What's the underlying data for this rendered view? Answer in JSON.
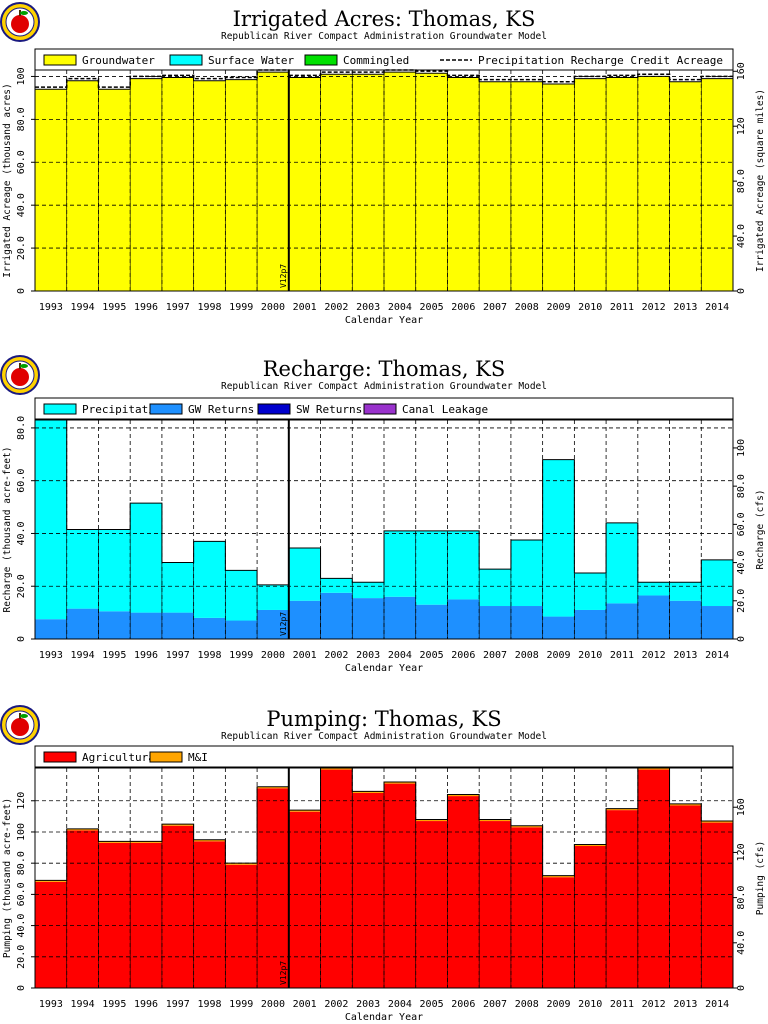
{
  "logo": {
    "icon": "apple-seal-icon"
  },
  "chart_data": [
    {
      "type": "bar",
      "title": "Irrigated Acres: Thomas, KS",
      "subtitle": "Republican River Compact Administration Groundwater Model",
      "xlabel": "Calendar Year",
      "ylabel": "Irrigated Acreage (thousand acres)",
      "ylabel_right": "Irrigated Acreage (square miles)",
      "categories": [
        "1993",
        "1994",
        "1995",
        "1996",
        "1997",
        "1998",
        "1999",
        "2000",
        "2001",
        "2002",
        "2003",
        "2004",
        "2005",
        "2006",
        "2007",
        "2008",
        "2009",
        "2010",
        "2011",
        "2012",
        "2013",
        "2014"
      ],
      "ylim": [
        0,
        103
      ],
      "yticks": [
        0,
        20,
        40,
        60,
        80,
        100
      ],
      "ytick_labels": [
        "0",
        "20.0",
        "40.0",
        "60.0",
        "80.0",
        "100"
      ],
      "yticks_right": [
        0,
        40,
        80,
        120,
        160
      ],
      "ytick_labels_right": [
        "0",
        "40.0",
        "80.0",
        "120",
        "160"
      ],
      "right_scale": 1.5625,
      "grid": true,
      "legend_position": "top",
      "marker": {
        "label": "V12p7",
        "between": [
          "2000",
          "2001"
        ]
      },
      "series": [
        {
          "name": "Groundwater",
          "color": "#ffff00",
          "values": [
            94,
            98,
            94,
            99,
            99.5,
            98,
            98.5,
            102,
            99.5,
            101,
            101,
            102,
            101.5,
            99.5,
            97.5,
            97.5,
            96.5,
            99,
            99.5,
            100,
            97.5,
            99
          ]
        },
        {
          "name": "Surface Water",
          "color": "#00ffff",
          "values": [
            0,
            0,
            0,
            0,
            0,
            0,
            0,
            0,
            0,
            0,
            0,
            0,
            0,
            0,
            0,
            0,
            0,
            0,
            0,
            0,
            0,
            0
          ]
        },
        {
          "name": "Commingled",
          "color": "#00e000",
          "values": [
            0,
            0,
            0,
            0,
            0,
            0,
            0,
            0,
            0,
            0,
            0,
            0,
            0,
            0,
            0,
            0,
            0,
            0,
            0,
            0,
            0,
            0
          ]
        }
      ],
      "line_series": {
        "name": "Precipitation Recharge Credit Acreage",
        "style": "dashed",
        "values": [
          95,
          99,
          95,
          100,
          100.5,
          99,
          99.5,
          103,
          100.5,
          102,
          102,
          103,
          102.5,
          100.5,
          98.5,
          98.5,
          97.5,
          100,
          100.5,
          101,
          98.5,
          100
        ]
      }
    },
    {
      "type": "bar",
      "title": "Recharge: Thomas, KS",
      "subtitle": "Republican River Compact Administration Groundwater Model",
      "xlabel": "Calendar Year",
      "ylabel": "Recharge (thousand acre-feet)",
      "ylabel_right": "Recharge (cfs)",
      "categories": [
        "1993",
        "1994",
        "1995",
        "1996",
        "1997",
        "1998",
        "1999",
        "2000",
        "2001",
        "2002",
        "2003",
        "2004",
        "2005",
        "2006",
        "2007",
        "2008",
        "2009",
        "2010",
        "2011",
        "2012",
        "2013",
        "2014"
      ],
      "ylim": [
        0,
        83
      ],
      "yticks": [
        0,
        20,
        40,
        60,
        80
      ],
      "ytick_labels": [
        "0",
        "20.0",
        "40.0",
        "60.0",
        "80.0"
      ],
      "yticks_right": [
        0,
        20,
        40,
        60,
        80,
        100
      ],
      "ytick_labels_right": [
        "0",
        "20.0",
        "40.0",
        "60.0",
        "80.0",
        "100"
      ],
      "right_scale": 1.381,
      "grid": true,
      "legend_position": "top",
      "marker": {
        "label": "V12p7",
        "between": [
          "2000",
          "2001"
        ]
      },
      "series": [
        {
          "name": "GW Returns",
          "color": "#1e90ff",
          "values": [
            7.5,
            11.5,
            10.5,
            10,
            10,
            8,
            7,
            11,
            14.5,
            17.5,
            15.5,
            16,
            13,
            15,
            12.5,
            12.5,
            8.5,
            11,
            13.5,
            16.5,
            14.5,
            12.5
          ]
        },
        {
          "name": "Precipitation",
          "color": "#00ffff",
          "values": [
            75.5,
            30,
            31,
            41.5,
            19,
            29,
            19,
            9.5,
            20,
            5.5,
            6,
            25,
            28,
            26,
            14,
            25,
            59.5,
            14,
            30.5,
            5,
            7,
            17.5
          ]
        },
        {
          "name": "SW Returns",
          "color": "#0000cd",
          "values": [
            0,
            0,
            0,
            0,
            0,
            0,
            0,
            0,
            0,
            0,
            0,
            0,
            0,
            0,
            0,
            0,
            0,
            0,
            0,
            0,
            0,
            0
          ]
        },
        {
          "name": "Canal Leakage",
          "color": "#9932cc",
          "values": [
            0,
            0,
            0,
            0,
            0,
            0,
            0,
            0,
            0,
            0,
            0,
            0,
            0,
            0,
            0,
            0,
            0,
            0,
            0,
            0,
            0,
            0
          ]
        }
      ]
    },
    {
      "type": "bar",
      "title": "Pumping: Thomas, KS",
      "subtitle": "Republican River Compact Administration Groundwater Model",
      "xlabel": "Calendar Year",
      "ylabel": "Pumping (thousand acre-feet)",
      "ylabel_right": "Pumping (cfs)",
      "categories": [
        "1993",
        "1994",
        "1995",
        "1996",
        "1997",
        "1998",
        "1999",
        "2000",
        "2001",
        "2002",
        "2003",
        "2004",
        "2005",
        "2006",
        "2007",
        "2008",
        "2009",
        "2010",
        "2011",
        "2012",
        "2013",
        "2014"
      ],
      "ylim": [
        0,
        141
      ],
      "yticks": [
        0,
        20,
        40,
        60,
        80,
        100,
        120
      ],
      "ytick_labels": [
        "0",
        "20.0",
        "40.0",
        "60.0",
        "80.0",
        "100",
        "120"
      ],
      "yticks_right": [
        0,
        40,
        80,
        120,
        160
      ],
      "ytick_labels_right": [
        "0",
        "40.0",
        "80.0",
        "120",
        "160"
      ],
      "right_scale": 1.381,
      "grid": true,
      "legend_position": "top",
      "marker": {
        "label": "V12p7",
        "between": [
          "2000",
          "2001"
        ]
      },
      "series": [
        {
          "name": "Agricultural",
          "color": "#ff0000",
          "values": [
            68,
            101,
            93,
            93,
            104,
            94,
            79,
            128,
            113,
            140,
            125,
            131,
            107,
            123,
            107,
            103,
            71,
            91,
            114,
            140,
            117,
            106
          ]
        },
        {
          "name": "M&I",
          "color": "#ffa500",
          "values": [
            1,
            1,
            1,
            1,
            1,
            1,
            1,
            1,
            1,
            1,
            1,
            1,
            1,
            1,
            1,
            1,
            1,
            1,
            1,
            1,
            1,
            1
          ]
        }
      ]
    }
  ]
}
